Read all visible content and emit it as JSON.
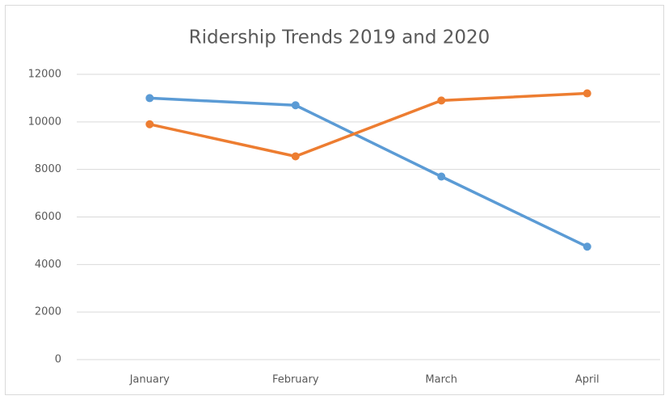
{
  "chart_data": {
    "type": "line",
    "title": "Ridership Trends 2019 and 2020",
    "categories": [
      "January",
      "February",
      "March",
      "April"
    ],
    "series": [
      {
        "color": "#5b9bd5",
        "values": [
          11000,
          10700,
          7700,
          4750
        ]
      },
      {
        "color": "#ed7d31",
        "values": [
          9900,
          8550,
          10900,
          11200
        ]
      }
    ],
    "ylim": [
      0,
      12000
    ],
    "yticks": [
      0,
      2000,
      4000,
      6000,
      8000,
      10000,
      12000
    ],
    "grid": true
  }
}
